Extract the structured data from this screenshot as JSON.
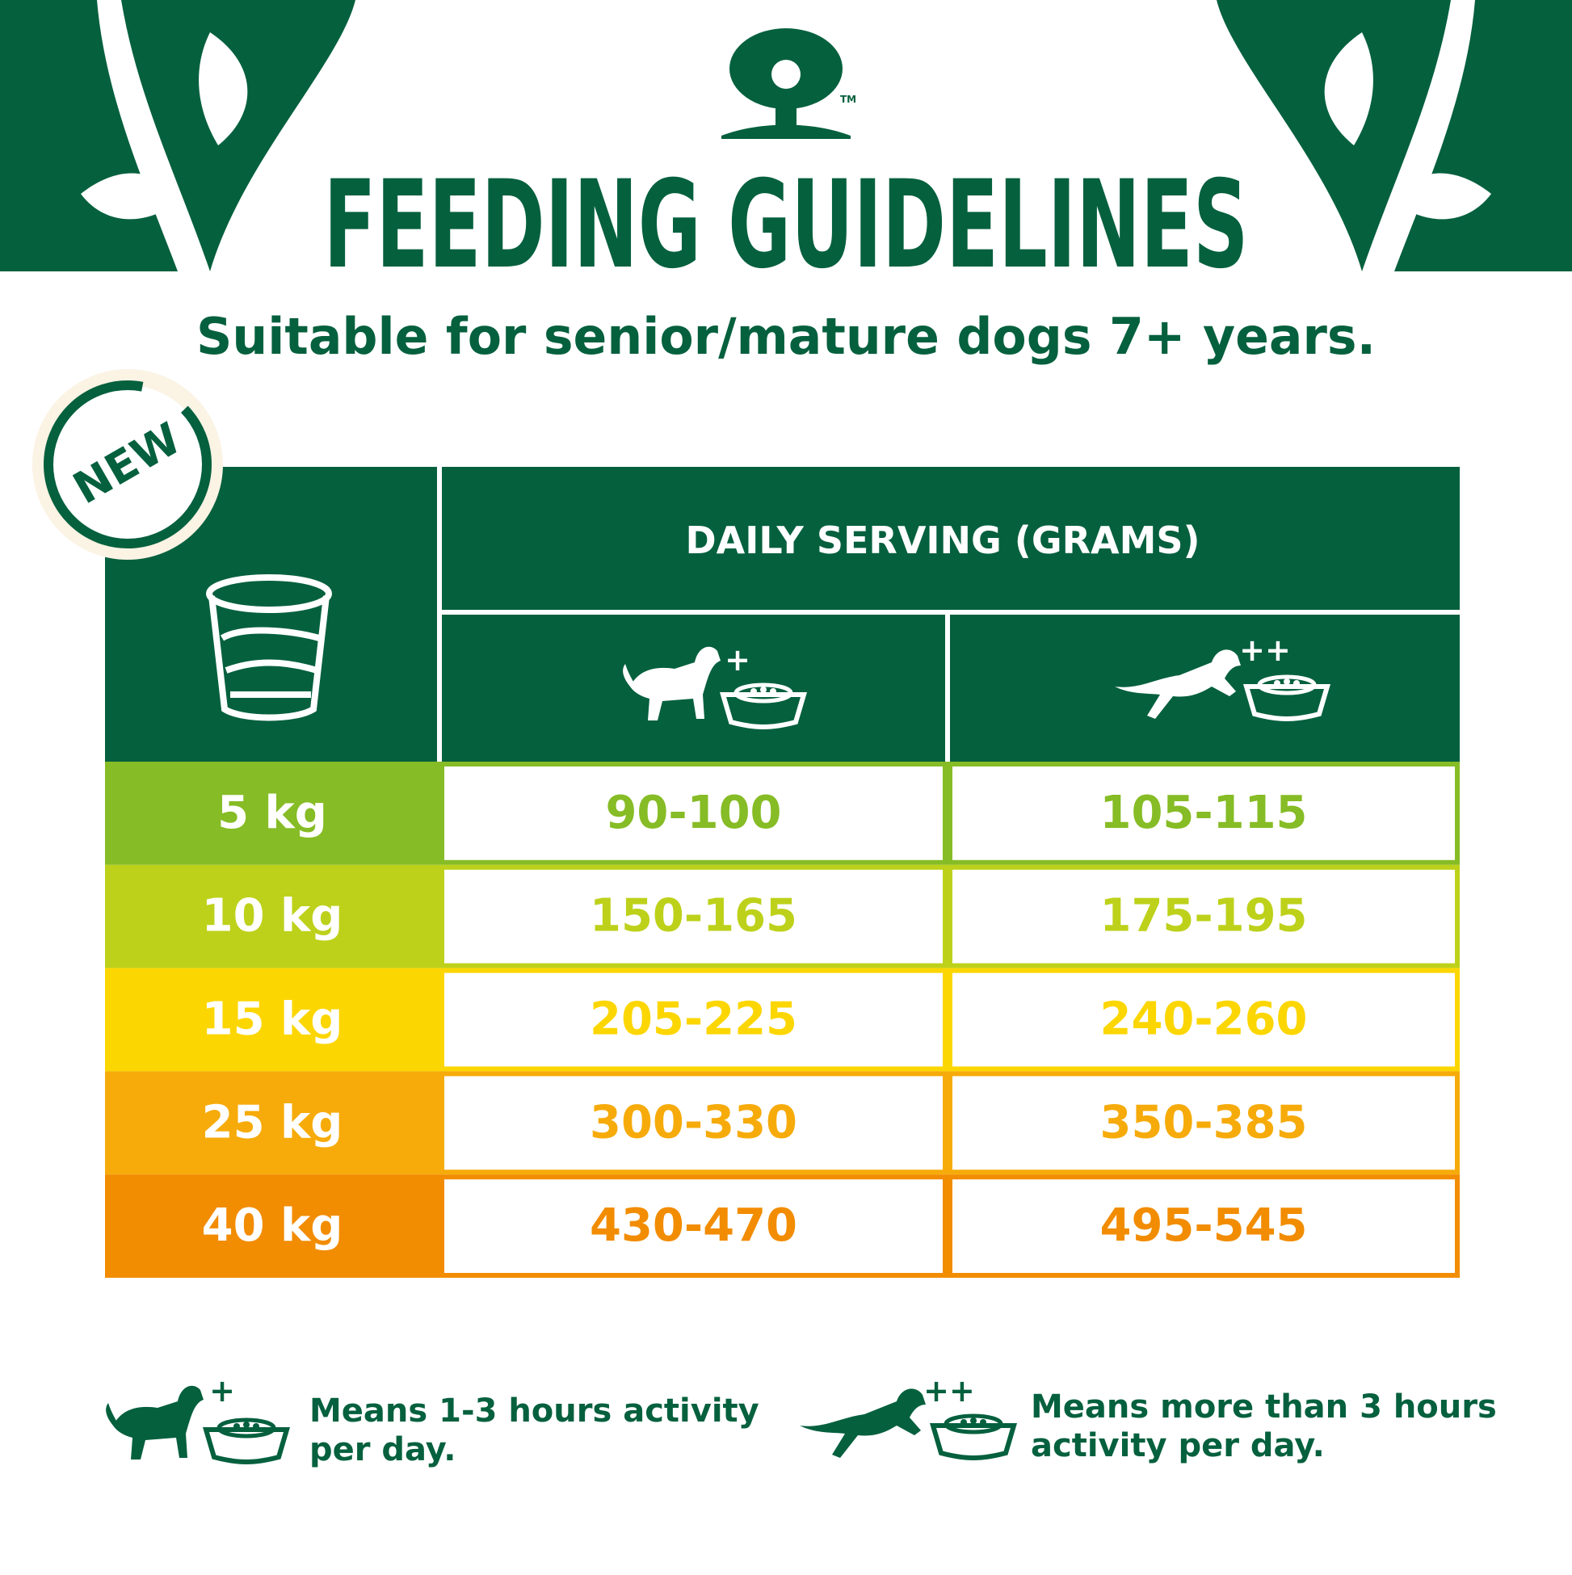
{
  "logo": {
    "trademark": "TM"
  },
  "header": {
    "title": "FEEDING GUIDELINES",
    "subtitle": "Suitable for senior/mature dogs 7+ years."
  },
  "badge": "NEW",
  "table": {
    "header": "DAILY SERVING (GRAMS)",
    "columns": [
      {
        "symbol": "+"
      },
      {
        "symbol": "++"
      }
    ],
    "rows": [
      [
        "5 kg",
        "90-100",
        "105-115"
      ],
      [
        "10 kg",
        "150-165",
        "175-195"
      ],
      [
        "15 kg",
        "205-225",
        "240-260"
      ],
      [
        "25 kg",
        "300-330",
        "350-385"
      ],
      [
        "40 kg",
        "430-470",
        "495-545"
      ]
    ],
    "row_colors": [
      "#86bc25",
      "#bdd11a",
      "#fcd600",
      "#f6ab0a",
      "#f28c00"
    ]
  },
  "legend": [
    {
      "symbol": "+",
      "lines": [
        "Means 1-3 hours activity",
        "per day."
      ]
    },
    {
      "symbol": "++",
      "lines": [
        "Means more than 3 hours",
        "activity per day."
      ]
    }
  ]
}
